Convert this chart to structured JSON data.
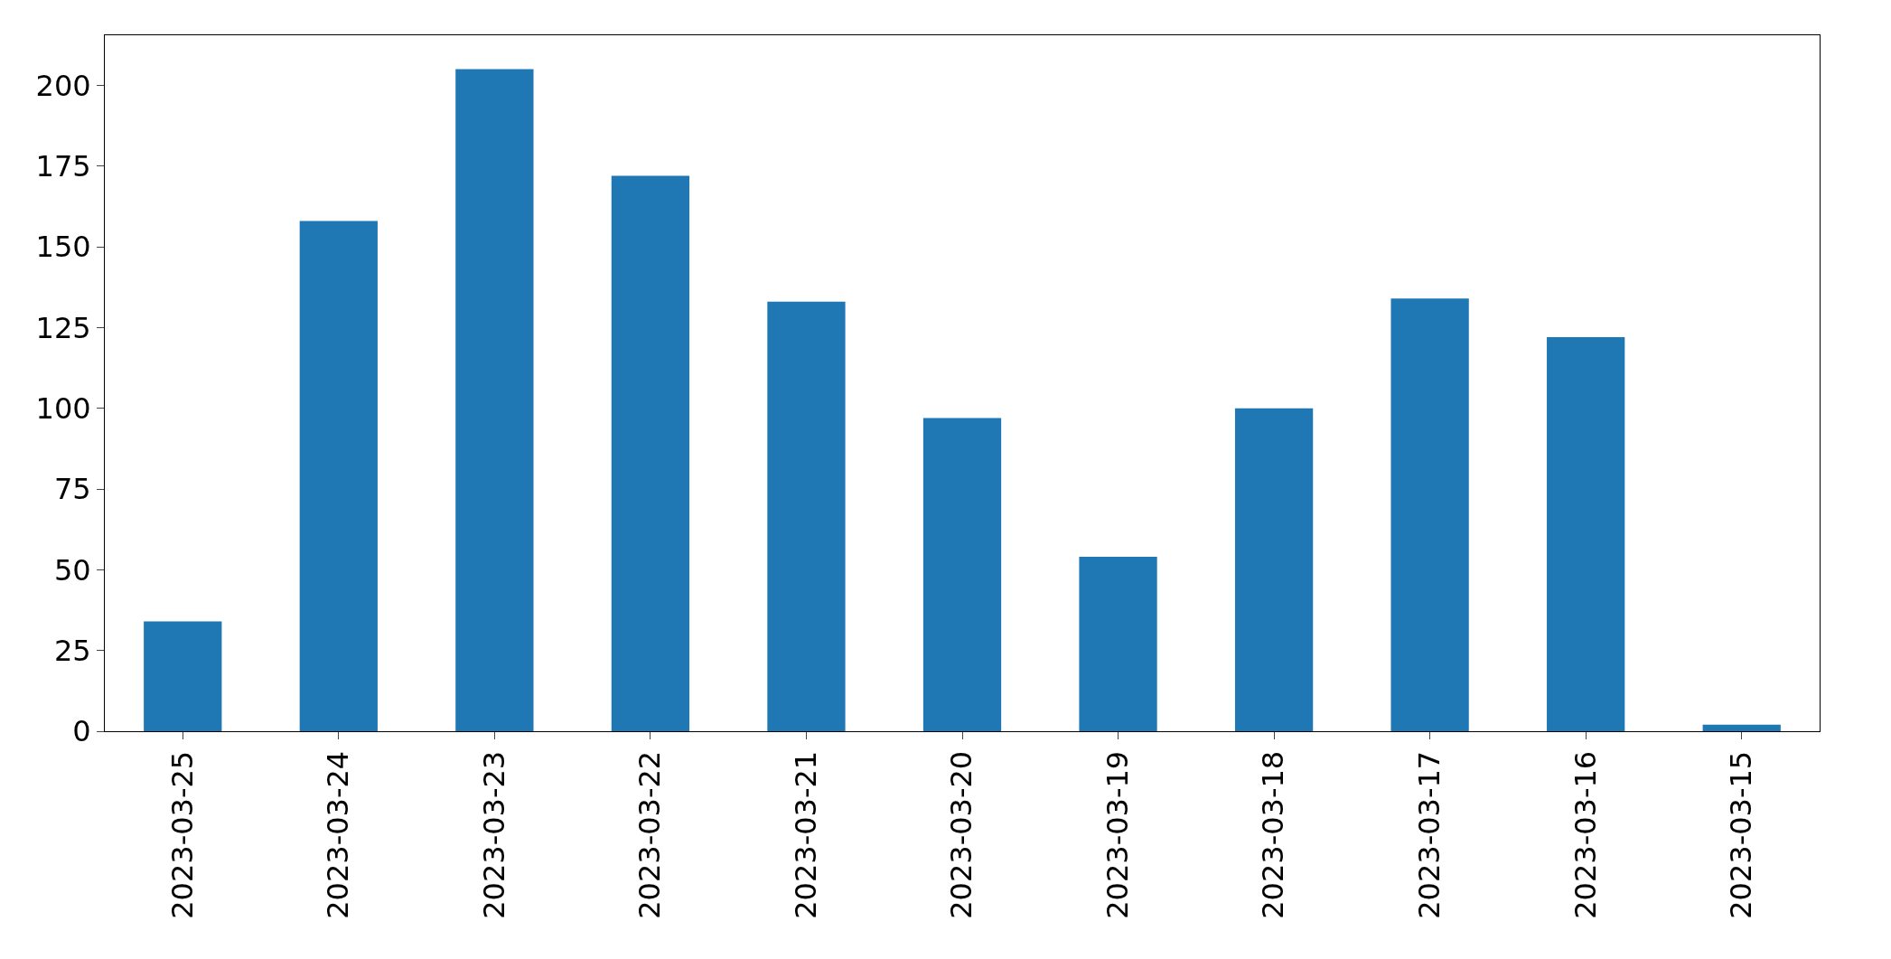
{
  "chart_data": {
    "type": "bar",
    "categories": [
      "2023-03-25",
      "2023-03-24",
      "2023-03-23",
      "2023-03-22",
      "2023-03-21",
      "2023-03-20",
      "2023-03-19",
      "2023-03-18",
      "2023-03-17",
      "2023-03-16",
      "2023-03-15"
    ],
    "values": [
      34,
      158,
      205,
      172,
      133,
      97,
      54,
      100,
      134,
      122,
      2
    ],
    "color": "#1f77b4",
    "ylim": [
      0,
      215.5
    ],
    "yticks": [
      0,
      25,
      50,
      75,
      100,
      125,
      150,
      175,
      200
    ],
    "grid": false,
    "legend": false
  }
}
